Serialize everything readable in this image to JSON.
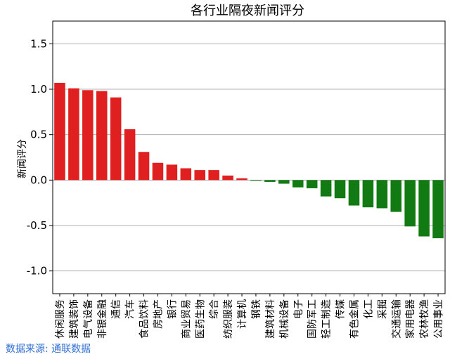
{
  "chart_data": {
    "type": "bar",
    "title": "各行业隔夜新闻评分",
    "xlabel": "",
    "ylabel": "新闻评分",
    "ylim": [
      -1.25,
      1.75
    ],
    "yticks": [
      1.5,
      1.0,
      0.5,
      0.0,
      -0.5,
      -1.0
    ],
    "ytick_labels": [
      "1.5",
      "1.0",
      "0.5",
      "0.0",
      "-0.5",
      "-1.0"
    ],
    "grid": "horizontal",
    "colors": {
      "positive": "#e02020",
      "negative": "#127a12",
      "grid": "#b0b0b0",
      "axis": "#000000"
    },
    "categories": [
      "休闲服务",
      "建筑装饰",
      "电气设备",
      "非银金融",
      "通信",
      "汽车",
      "食品饮料",
      "房地产",
      "银行",
      "商业贸易",
      "医药生物",
      "综合",
      "纺织服装",
      "计算机",
      "钢铁",
      "建筑材料",
      "机械设备",
      "电子",
      "国防军工",
      "轻工制造",
      "传媒",
      "有色金属",
      "化工",
      "采掘",
      "交通运输",
      "家用电器",
      "农林牧渔",
      "公用事业"
    ],
    "values": [
      1.07,
      1.01,
      0.99,
      0.98,
      0.91,
      0.56,
      0.31,
      0.19,
      0.17,
      0.13,
      0.11,
      0.11,
      0.05,
      0.02,
      -0.005,
      -0.02,
      -0.04,
      -0.08,
      -0.09,
      -0.18,
      -0.2,
      -0.28,
      -0.3,
      -0.31,
      -0.35,
      -0.51,
      -0.62,
      -0.64
    ]
  },
  "source_label": "数据来源: 通联数据"
}
